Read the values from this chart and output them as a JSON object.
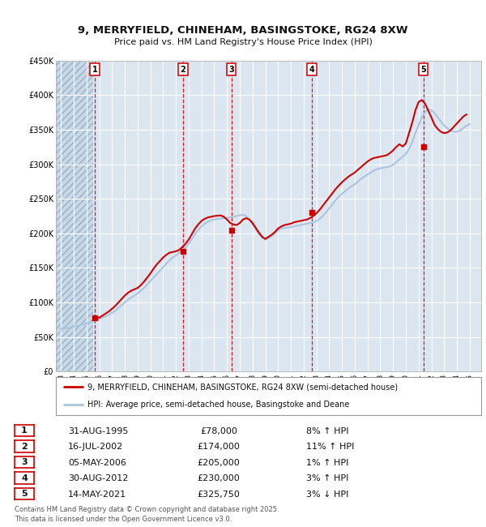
{
  "title1": "9, MERRYFIELD, CHINEHAM, BASINGSTOKE, RG24 8XW",
  "title2": "Price paid vs. HM Land Registry's House Price Index (HPI)",
  "background_color": "#ffffff",
  "plot_bg_color": "#dce6f1",
  "grid_color": "#ffffff",
  "red_line_color": "#cc0000",
  "blue_line_color": "#aac4de",
  "sale_marker_color": "#cc0000",
  "ylim": [
    0,
    450000
  ],
  "yticks": [
    0,
    50000,
    100000,
    150000,
    200000,
    250000,
    300000,
    350000,
    400000,
    450000
  ],
  "ytick_labels": [
    "£0",
    "£50K",
    "£100K",
    "£150K",
    "£200K",
    "£250K",
    "£300K",
    "£350K",
    "£400K",
    "£450K"
  ],
  "xlim_start": 1992.6,
  "xlim_end": 2025.9,
  "xticks": [
    1993,
    1994,
    1995,
    1996,
    1997,
    1998,
    1999,
    2000,
    2001,
    2002,
    2003,
    2004,
    2005,
    2006,
    2007,
    2008,
    2009,
    2010,
    2011,
    2012,
    2013,
    2014,
    2015,
    2016,
    2017,
    2018,
    2019,
    2020,
    2021,
    2022,
    2023,
    2024,
    2025
  ],
  "hatch_end": 1995.5,
  "sales": [
    {
      "year": 1995.66,
      "price": 78000,
      "label": "1",
      "date": "31-AUG-1995",
      "price_str": "£78,000",
      "pct": "8%",
      "dir": "↑"
    },
    {
      "year": 2002.54,
      "price": 174000,
      "label": "2",
      "date": "16-JUL-2002",
      "price_str": "£174,000",
      "pct": "11%",
      "dir": "↑"
    },
    {
      "year": 2006.34,
      "price": 205000,
      "label": "3",
      "date": "05-MAY-2006",
      "price_str": "£205,000",
      "pct": "1%",
      "dir": "↑"
    },
    {
      "year": 2012.66,
      "price": 230000,
      "label": "4",
      "date": "30-AUG-2012",
      "price_str": "£230,000",
      "pct": "3%",
      "dir": "↑"
    },
    {
      "year": 2021.37,
      "price": 325750,
      "label": "5",
      "date": "14-MAY-2021",
      "price_str": "£325,750",
      "pct": "3%",
      "dir": "↓"
    }
  ],
  "legend_red": "9, MERRYFIELD, CHINEHAM, BASINGSTOKE, RG24 8XW (semi-detached house)",
  "legend_blue": "HPI: Average price, semi-detached house, Basingstoke and Deane",
  "footer": "Contains HM Land Registry data © Crown copyright and database right 2025.\nThis data is licensed under the Open Government Licence v3.0.",
  "hpi_x": [
    1993.0,
    1993.25,
    1993.5,
    1993.75,
    1994.0,
    1994.25,
    1994.5,
    1994.75,
    1995.0,
    1995.25,
    1995.5,
    1995.75,
    1996.0,
    1996.25,
    1996.5,
    1996.75,
    1997.0,
    1997.25,
    1997.5,
    1997.75,
    1998.0,
    1998.25,
    1998.5,
    1998.75,
    1999.0,
    1999.25,
    1999.5,
    1999.75,
    2000.0,
    2000.25,
    2000.5,
    2000.75,
    2001.0,
    2001.25,
    2001.5,
    2001.75,
    2002.0,
    2002.25,
    2002.5,
    2002.75,
    2003.0,
    2003.25,
    2003.5,
    2003.75,
    2004.0,
    2004.25,
    2004.5,
    2004.75,
    2005.0,
    2005.25,
    2005.5,
    2005.75,
    2006.0,
    2006.25,
    2006.5,
    2006.75,
    2007.0,
    2007.25,
    2007.5,
    2007.75,
    2008.0,
    2008.25,
    2008.5,
    2008.75,
    2009.0,
    2009.25,
    2009.5,
    2009.75,
    2010.0,
    2010.25,
    2010.5,
    2010.75,
    2011.0,
    2011.25,
    2011.5,
    2011.75,
    2012.0,
    2012.25,
    2012.5,
    2012.75,
    2013.0,
    2013.25,
    2013.5,
    2013.75,
    2014.0,
    2014.25,
    2014.5,
    2014.75,
    2015.0,
    2015.25,
    2015.5,
    2015.75,
    2016.0,
    2016.25,
    2016.5,
    2016.75,
    2017.0,
    2017.25,
    2017.5,
    2017.75,
    2018.0,
    2018.25,
    2018.5,
    2018.75,
    2019.0,
    2019.25,
    2019.5,
    2019.75,
    2020.0,
    2020.25,
    2020.5,
    2020.75,
    2021.0,
    2021.25,
    2021.5,
    2021.75,
    2022.0,
    2022.25,
    2022.5,
    2022.75,
    2023.0,
    2023.25,
    2023.5,
    2023.75,
    2024.0,
    2024.25,
    2024.5,
    2024.75,
    2025.0
  ],
  "hpi_y": [
    62000,
    62500,
    63000,
    63500,
    65000,
    66000,
    67000,
    68000,
    70000,
    71000,
    72500,
    74000,
    76000,
    78000,
    80000,
    82000,
    85000,
    88000,
    92000,
    96000,
    100000,
    104000,
    107000,
    110000,
    113000,
    117000,
    121000,
    126000,
    131000,
    136000,
    141000,
    146000,
    151000,
    156000,
    161000,
    165000,
    168000,
    172000,
    176000,
    180000,
    185000,
    192000,
    199000,
    205000,
    210000,
    214000,
    217000,
    219000,
    220000,
    221000,
    221500,
    222000,
    222500,
    223000,
    224000,
    225000,
    226500,
    227000,
    225000,
    220000,
    213000,
    206000,
    199000,
    194000,
    191000,
    193000,
    196000,
    200000,
    204000,
    207000,
    208000,
    208500,
    209000,
    210000,
    211000,
    212000,
    213000,
    214000,
    215000,
    216000,
    218000,
    221000,
    225000,
    230000,
    236000,
    242000,
    248000,
    253000,
    257000,
    261000,
    265000,
    268000,
    271000,
    275000,
    279000,
    282000,
    285000,
    288000,
    291000,
    293000,
    294000,
    295000,
    296000,
    297000,
    299000,
    303000,
    307000,
    311000,
    315000,
    322000,
    332000,
    345000,
    356000,
    368000,
    375000,
    380000,
    378000,
    374000,
    368000,
    362000,
    356000,
    352000,
    349000,
    347000,
    347000,
    349000,
    352000,
    356000,
    358000
  ],
  "price_x": [
    1993.0,
    1993.25,
    1993.5,
    1993.75,
    1994.0,
    1994.25,
    1994.5,
    1994.75,
    1995.0,
    1995.25,
    1995.5,
    1995.75,
    1996.0,
    1996.25,
    1996.5,
    1996.75,
    1997.0,
    1997.25,
    1997.5,
    1997.75,
    1998.0,
    1998.25,
    1998.5,
    1998.75,
    1999.0,
    1999.25,
    1999.5,
    1999.75,
    2000.0,
    2000.25,
    2000.5,
    2000.75,
    2001.0,
    2001.25,
    2001.5,
    2001.75,
    2002.0,
    2002.25,
    2002.5,
    2002.75,
    2003.0,
    2003.25,
    2003.5,
    2003.75,
    2004.0,
    2004.25,
    2004.5,
    2004.75,
    2005.0,
    2005.25,
    2005.5,
    2005.75,
    2006.0,
    2006.25,
    2006.5,
    2006.75,
    2007.0,
    2007.25,
    2007.5,
    2007.75,
    2008.0,
    2008.25,
    2008.5,
    2008.75,
    2009.0,
    2009.25,
    2009.5,
    2009.75,
    2010.0,
    2010.25,
    2010.5,
    2010.75,
    2011.0,
    2011.25,
    2011.5,
    2011.75,
    2012.0,
    2012.25,
    2012.5,
    2012.75,
    2013.0,
    2013.25,
    2013.5,
    2013.75,
    2014.0,
    2014.25,
    2014.5,
    2014.75,
    2015.0,
    2015.25,
    2015.5,
    2015.75,
    2016.0,
    2016.25,
    2016.5,
    2016.75,
    2017.0,
    2017.25,
    2017.5,
    2017.75,
    2018.0,
    2018.25,
    2018.5,
    2018.75,
    2019.0,
    2019.25,
    2019.5,
    2019.75,
    2020.0,
    2020.25,
    2020.5,
    2020.75,
    2021.0,
    2021.25,
    2021.5,
    2021.75,
    2022.0,
    2022.25,
    2022.5,
    2022.75,
    2023.0,
    2023.25,
    2023.5,
    2023.75,
    2024.0,
    2024.25,
    2024.5,
    2024.75,
    2025.0
  ],
  "price_y": [
    null,
    null,
    null,
    null,
    null,
    null,
    null,
    null,
    null,
    null,
    null,
    78000,
    78000,
    81000,
    84000,
    87000,
    91000,
    95000,
    100000,
    105000,
    110000,
    114000,
    117000,
    119000,
    121000,
    125000,
    130000,
    136000,
    142000,
    149000,
    155000,
    160000,
    165000,
    169000,
    172000,
    173000,
    174000,
    176000,
    180000,
    185000,
    191000,
    199000,
    207000,
    213000,
    218000,
    221000,
    223000,
    224000,
    225000,
    225500,
    226000,
    224000,
    220000,
    215000,
    213000,
    212000,
    215000,
    220000,
    222000,
    220000,
    215000,
    208000,
    201000,
    195000,
    192000,
    195000,
    198000,
    202000,
    207000,
    210000,
    212000,
    213000,
    214000,
    216000,
    217000,
    218000,
    219000,
    220000,
    222000,
    225000,
    229000,
    234000,
    240000,
    246000,
    252000,
    258000,
    264000,
    269000,
    274000,
    278000,
    282000,
    285000,
    288000,
    292000,
    296000,
    300000,
    304000,
    307000,
    309000,
    310000,
    311000,
    312000,
    313000,
    316000,
    320000,
    325000,
    329000,
    325750,
    330000,
    345000,
    360000,
    378000,
    390000,
    393000,
    388000,
    378000,
    368000,
    357000,
    351000,
    347000,
    345000,
    346000,
    349000,
    354000,
    359000,
    364000,
    369000,
    372000
  ]
}
